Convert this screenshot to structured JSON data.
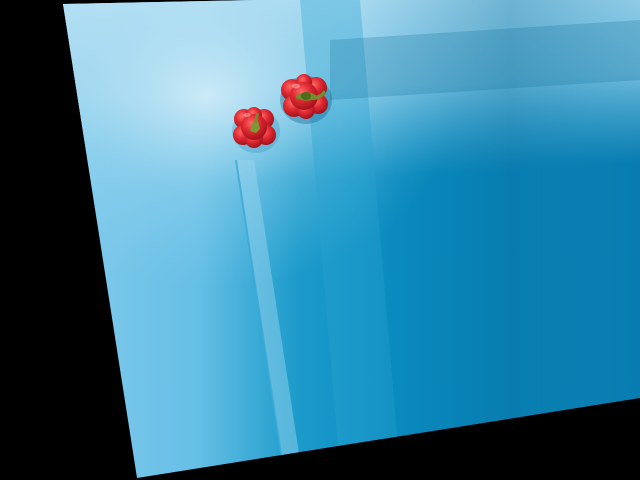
{
  "image": {
    "description_colors": {
      "background_black": "#000000",
      "light_blue": "#a8d8f0",
      "mid_blue": "#4fb3dd",
      "deep_blue": "#0683b6",
      "pepper_red": "#d81e2c",
      "stem_green": "#6f8f2e"
    },
    "objects": [
      {
        "name": "red-bell-pepper",
        "count": 2
      }
    ]
  }
}
